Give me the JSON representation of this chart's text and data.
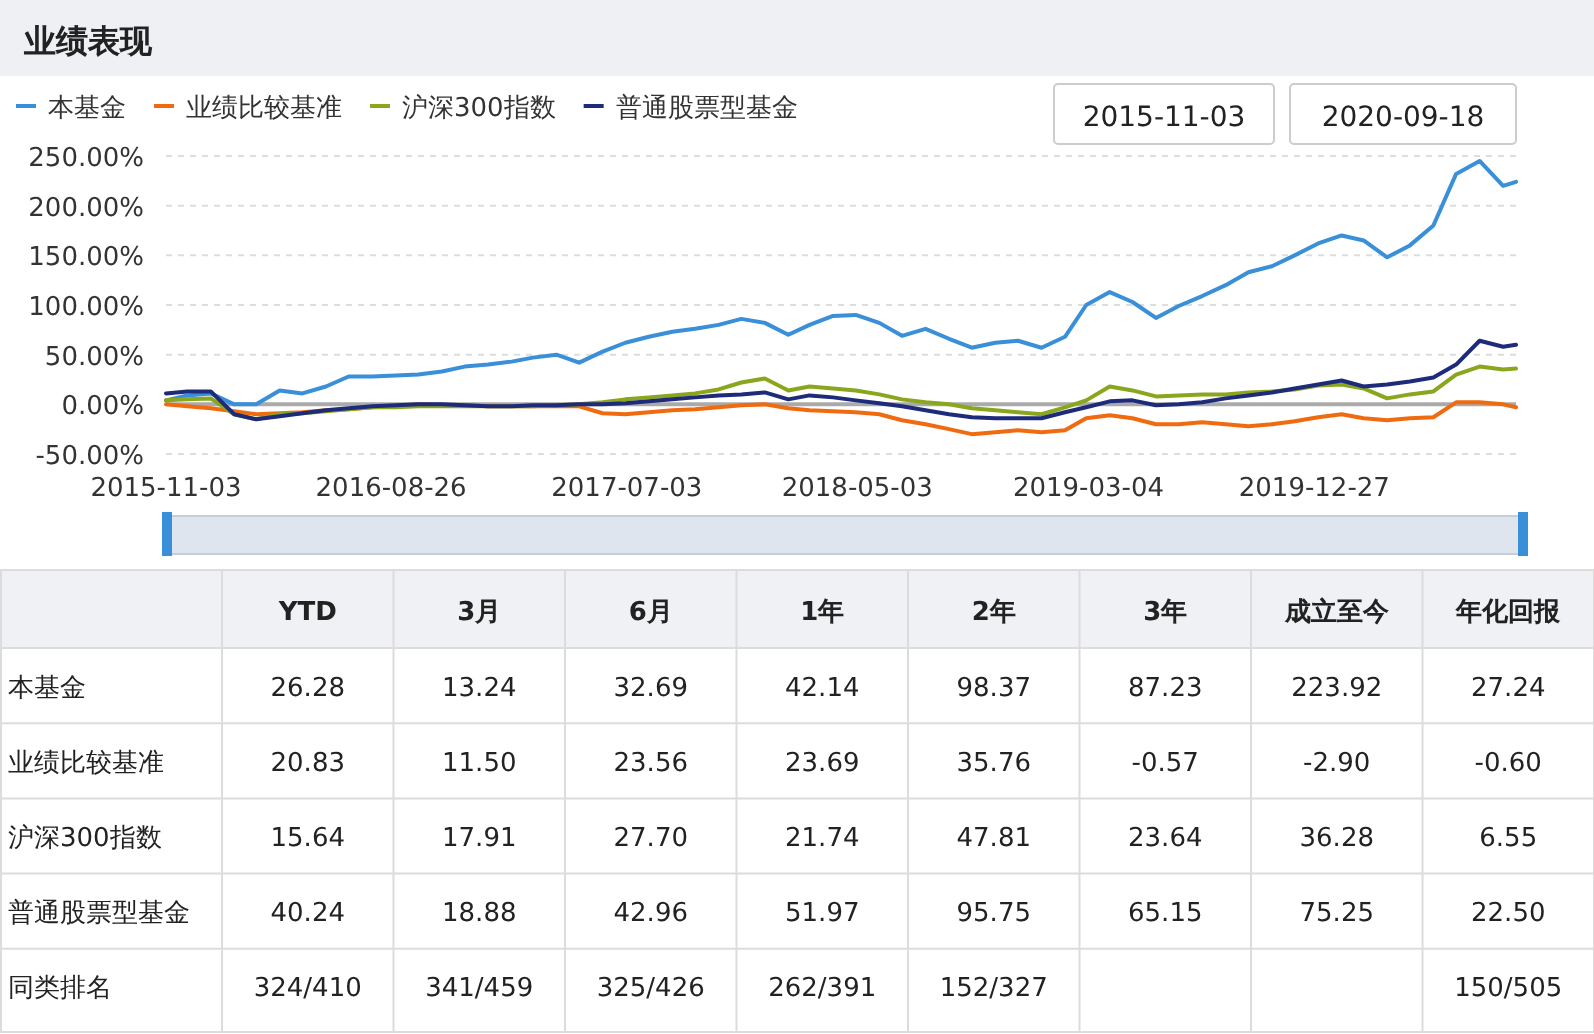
{
  "chart_data": [
    {
      "type": "line",
      "title": "业绩表现",
      "x": [
        "2015-11-03",
        "2015-12",
        "2016-01",
        "2016-02",
        "2016-03",
        "2016-04",
        "2016-05",
        "2016-06",
        "2016-07",
        "2016-08",
        "2016-09",
        "2016-10",
        "2016-11",
        "2016-12",
        "2017-01",
        "2017-02",
        "2017-03",
        "2017-04",
        "2017-05",
        "2017-06",
        "2017-07",
        "2017-08",
        "2017-09",
        "2017-10",
        "2017-11",
        "2017-12",
        "2018-01",
        "2018-02",
        "2018-03",
        "2018-04",
        "2018-05",
        "2018-06",
        "2018-07",
        "2018-08",
        "2018-09",
        "2018-10",
        "2018-11",
        "2018-12",
        "2019-01",
        "2019-02",
        "2019-03",
        "2019-04",
        "2019-05",
        "2019-06",
        "2019-07",
        "2019-08",
        "2019-09",
        "2019-10",
        "2019-11",
        "2019-12",
        "2020-01",
        "2020-02",
        "2020-03",
        "2020-04",
        "2020-05",
        "2020-06",
        "2020-07",
        "2020-08",
        "2020-09",
        "2020-09-18"
      ],
      "series": [
        {
          "name": "本基金",
          "color": "#3a8fd9",
          "values": [
            4,
            9,
            11,
            0,
            0,
            14,
            11,
            18,
            28,
            28,
            29,
            30,
            33,
            38,
            40,
            43,
            47,
            50,
            42,
            53,
            62,
            68,
            73,
            76,
            80,
            86,
            82,
            70,
            80,
            89,
            90,
            82,
            69,
            76,
            66,
            57,
            62,
            64,
            57,
            68,
            100,
            113,
            103,
            87,
            99,
            109,
            120,
            133,
            139,
            150,
            162,
            170,
            165,
            148,
            160,
            180,
            232,
            245,
            220,
            224
          ]
        },
        {
          "name": "业绩比较基准",
          "color": "#f06b10",
          "values": [
            0,
            -2,
            -4,
            -7,
            -10,
            -9,
            -8,
            -6,
            -5,
            -3,
            -2,
            0,
            -1,
            -1,
            -2,
            -2,
            -2,
            -2,
            -2,
            -9,
            -10,
            -8,
            -6,
            -5,
            -3,
            -1,
            0,
            -4,
            -6,
            -7,
            -8,
            -10,
            -16,
            -20,
            -25,
            -30,
            -28,
            -26,
            -28,
            -26,
            -14,
            -11,
            -14,
            -20,
            -20,
            -18,
            -20,
            -22,
            -20,
            -17,
            -13,
            -10,
            -14,
            -16,
            -14,
            -13,
            2,
            2,
            0,
            -3
          ]
        },
        {
          "name": "沪深300指数",
          "color": "#8aa61c",
          "values": [
            4,
            5,
            6,
            -10,
            -15,
            -10,
            -9,
            -7,
            -5,
            -3,
            -3,
            -2,
            -2,
            -2,
            -2,
            -2,
            -2,
            -1,
            0,
            2,
            5,
            7,
            9,
            11,
            15,
            22,
            26,
            14,
            18,
            16,
            14,
            10,
            5,
            2,
            0,
            -4,
            -6,
            -8,
            -10,
            -3,
            4,
            18,
            14,
            8,
            9,
            10,
            10,
            12,
            13,
            15,
            19,
            20,
            16,
            6,
            10,
            13,
            30,
            38,
            35,
            36
          ]
        },
        {
          "name": "普通股票型基金",
          "color": "#1e2a7a",
          "values": [
            11,
            13,
            13,
            -10,
            -15,
            -12,
            -9,
            -6,
            -4,
            -2,
            -1,
            0,
            0,
            -1,
            -2,
            -2,
            -1,
            -1,
            0,
            0,
            1,
            3,
            5,
            7,
            9,
            10,
            12,
            5,
            9,
            7,
            4,
            1,
            -2,
            -6,
            -10,
            -13,
            -14,
            -14,
            -14,
            -8,
            -3,
            3,
            4,
            -1,
            0,
            2,
            6,
            9,
            12,
            16,
            20,
            24,
            18,
            20,
            23,
            27,
            40,
            64,
            58,
            60
          ]
        }
      ],
      "xlim": [
        "2015-11-03",
        "2020-09-18"
      ],
      "xticks": [
        "2015-11-03",
        "2016-08-26",
        "2017-07-03",
        "2018-05-03",
        "2019-03-04",
        "2019-12-27"
      ],
      "ylim": [
        -50,
        250
      ],
      "yticks": [
        {
          "value": -50,
          "label": "-50.00%"
        },
        {
          "value": 0,
          "label": "0.00%"
        },
        {
          "value": 50,
          "label": "50.00%"
        },
        {
          "value": 100,
          "label": "100.00%"
        },
        {
          "value": 150,
          "label": "150.00%"
        },
        {
          "value": 200,
          "label": "200.00%"
        },
        {
          "value": 250,
          "label": "250.00%"
        }
      ],
      "ref_lines": [
        {
          "axis": "y",
          "value": 0,
          "color": "#aaaaaa"
        }
      ],
      "grid": "y",
      "legend": "top left",
      "annotations": [
        "2015-11-03",
        "2020-09-18"
      ]
    },
    {
      "type": "other",
      "categories": [
        "YTD",
        "3月",
        "6月",
        "1年",
        "2年",
        "3年",
        "成立至今",
        "年化回报"
      ],
      "y_categories": [
        "本基金",
        "业绩比较基准",
        "沪深300指数",
        "普通股票型基金",
        "同类排名"
      ],
      "cell_labels": [
        [
          "26.28",
          "13.24",
          "32.69",
          "42.14",
          "98.37",
          "87.23",
          "223.92",
          "27.24"
        ],
        [
          "20.83",
          "11.50",
          "23.56",
          "23.69",
          "35.76",
          "-0.57",
          "-2.90",
          "-0.60"
        ],
        [
          "15.64",
          "17.91",
          "27.70",
          "21.74",
          "47.81",
          "23.64",
          "36.28",
          "6.55"
        ],
        [
          "40.24",
          "18.88",
          "42.96",
          "51.97",
          "95.75",
          "65.15",
          "75.25",
          "22.50"
        ],
        [
          "324/410",
          "341/459",
          "325/426",
          "262/391",
          "152/327",
          null,
          null,
          "150/505"
        ]
      ]
    }
  ]
}
